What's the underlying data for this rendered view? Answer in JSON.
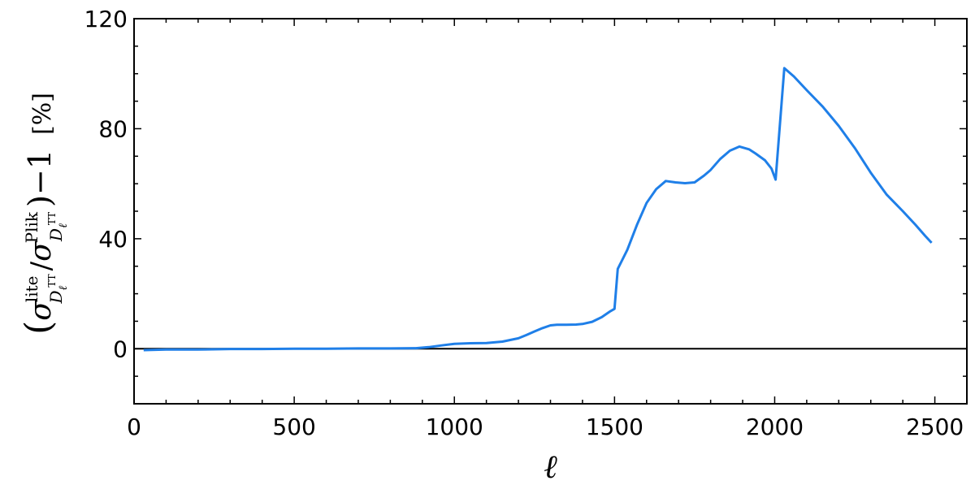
{
  "chart_data": {
    "type": "line",
    "xlabel": "ℓ",
    "ylabel": {
      "open_paren": "(",
      "sigma_num": "σ",
      "sup_num": "lite",
      "sub_num": "D",
      "sub_num_sub": "ℓ",
      "sub_num_sup": "TT",
      "slash": "/",
      "sigma_den": "σ",
      "sup_den": "Plik",
      "sub_den": "D",
      "sub_den_sub": "ℓ",
      "sub_den_sup": "TT",
      "close_minus_one": ")−1",
      "unit": "[%]"
    },
    "xlim": [
      0,
      2600
    ],
    "ylim": [
      -20,
      120
    ],
    "xticks": [
      0,
      500,
      1000,
      1500,
      2000,
      2500
    ],
    "yticks": [
      0,
      40,
      80,
      120
    ],
    "xtick_labels": [
      "0",
      "500",
      "1000",
      "1500",
      "2000",
      "2500"
    ],
    "ytick_labels": [
      "0",
      "40",
      "80",
      "120"
    ],
    "grid": false,
    "zero_line": 0,
    "series": [
      {
        "color": "#1f7fe8",
        "x": [
          30,
          100,
          200,
          300,
          400,
          500,
          600,
          700,
          800,
          880,
          920,
          960,
          1000,
          1050,
          1100,
          1150,
          1200,
          1225,
          1250,
          1275,
          1300,
          1320,
          1350,
          1380,
          1400,
          1430,
          1460,
          1485,
          1500,
          1510,
          1540,
          1570,
          1600,
          1630,
          1660,
          1690,
          1720,
          1750,
          1780,
          1800,
          1830,
          1860,
          1890,
          1920,
          1940,
          1970,
          1990,
          2003,
          2030,
          2060,
          2100,
          2150,
          2200,
          2250,
          2300,
          2350,
          2400,
          2440,
          2470,
          2490
        ],
        "y": [
          -0.5,
          -0.3,
          -0.3,
          -0.1,
          -0.1,
          0,
          0,
          0.1,
          0.1,
          0.2,
          0.6,
          1.2,
          1.8,
          2.0,
          2.1,
          2.6,
          3.8,
          5.0,
          6.3,
          7.5,
          8.5,
          8.7,
          8.7,
          8.8,
          9.0,
          9.8,
          11.5,
          13.5,
          14.5,
          29,
          36,
          45,
          53,
          58,
          61,
          60.5,
          60.2,
          60.5,
          63,
          65,
          69,
          72,
          73.5,
          72.5,
          71,
          68.5,
          65.5,
          61.5,
          102,
          99,
          94,
          88,
          81,
          73,
          64,
          56,
          50,
          45,
          41,
          38.5
        ]
      }
    ]
  }
}
